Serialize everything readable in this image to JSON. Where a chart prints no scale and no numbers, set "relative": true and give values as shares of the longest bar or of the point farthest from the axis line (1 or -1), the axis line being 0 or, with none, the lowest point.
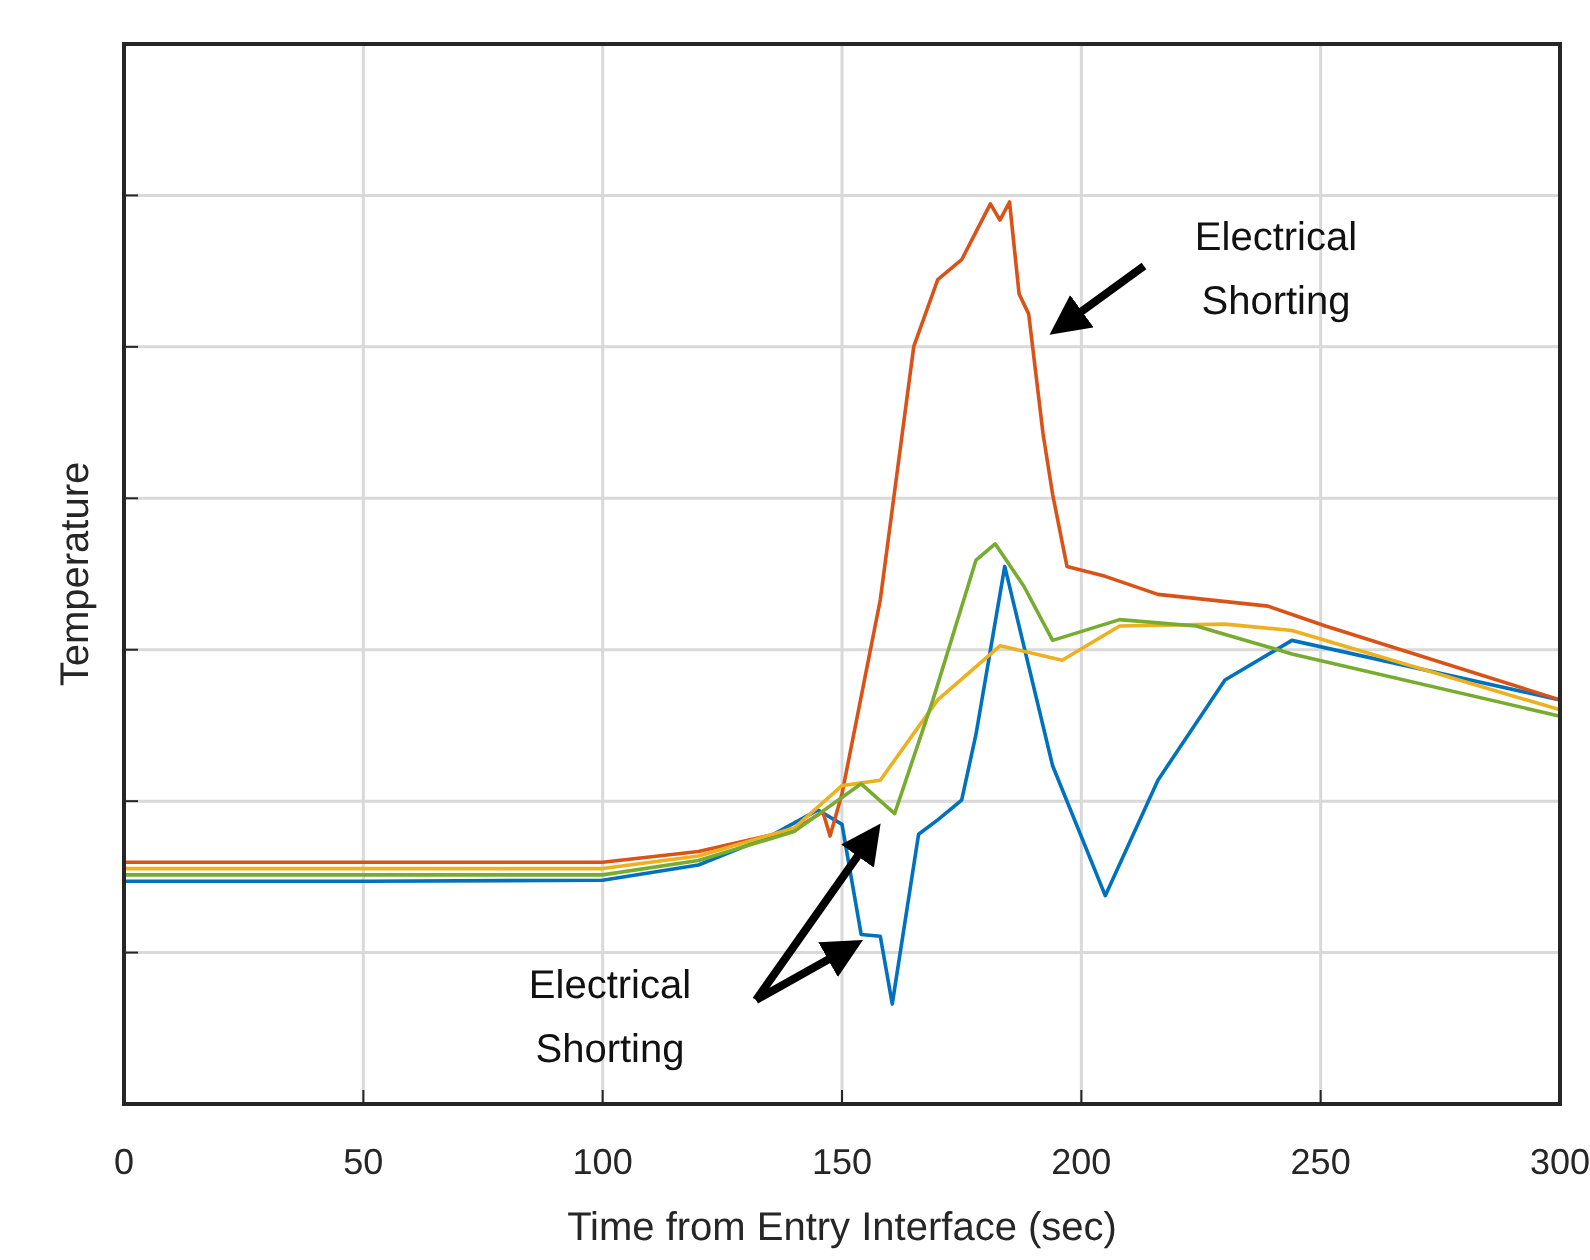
{
  "chart_data": {
    "type": "line",
    "relative": true,
    "xlabel": "Time from Entry Interface (sec)",
    "ylabel": "Temperature",
    "xlim": [
      0,
      300
    ],
    "xticks": [
      0,
      50,
      100,
      150,
      200,
      250,
      300
    ],
    "grid": true,
    "line_style": "solid",
    "annotations": [
      "Electrical Shorting",
      "Electrical Shorting"
    ],
    "series": [
      {
        "color": "#0072bd",
        "x": [
          0,
          50,
          100,
          120,
          135,
          145,
          150,
          154,
          158,
          160.5,
          166,
          170,
          175,
          178,
          184,
          194,
          205,
          216,
          230,
          244,
          300
        ],
        "values": [
          0.247,
          0.247,
          0.248,
          0.265,
          0.297,
          0.326,
          0.31,
          0.188,
          0.186,
          0.111,
          0.299,
          0.315,
          0.337,
          0.41,
          0.596,
          0.375,
          0.231,
          0.359,
          0.47,
          0.514,
          0.448
        ]
      },
      {
        "color": "#d95319",
        "x": [
          0,
          50,
          100,
          120,
          140,
          146,
          147.5,
          150,
          158,
          165,
          170,
          175,
          181,
          183,
          185,
          187,
          189,
          192,
          194,
          197,
          205,
          216,
          239,
          251,
          300
        ],
        "values": [
          0.268,
          0.268,
          0.268,
          0.28,
          0.304,
          0.324,
          0.297,
          0.344,
          0.559,
          0.84,
          0.914,
          0.936,
          0.998,
          0.98,
          1.0,
          0.898,
          0.876,
          0.743,
          0.676,
          0.596,
          0.585,
          0.565,
          0.552,
          0.53,
          0.448
        ]
      },
      {
        "color": "#edb120",
        "x": [
          0,
          50,
          100,
          120,
          140,
          150,
          158,
          170,
          183,
          196,
          208,
          230,
          244,
          300
        ],
        "values": [
          0.261,
          0.261,
          0.261,
          0.275,
          0.306,
          0.353,
          0.359,
          0.448,
          0.508,
          0.492,
          0.53,
          0.532,
          0.525,
          0.437
        ]
      },
      {
        "color": "#77ac30",
        "x": [
          0,
          50,
          100,
          120,
          140,
          154,
          161,
          169,
          178,
          182,
          188,
          194,
          208,
          224,
          244,
          300
        ],
        "values": [
          0.254,
          0.254,
          0.254,
          0.27,
          0.302,
          0.355,
          0.322,
          0.448,
          0.603,
          0.621,
          0.574,
          0.514,
          0.537,
          0.53,
          0.499,
          0.43
        ]
      }
    ]
  }
}
